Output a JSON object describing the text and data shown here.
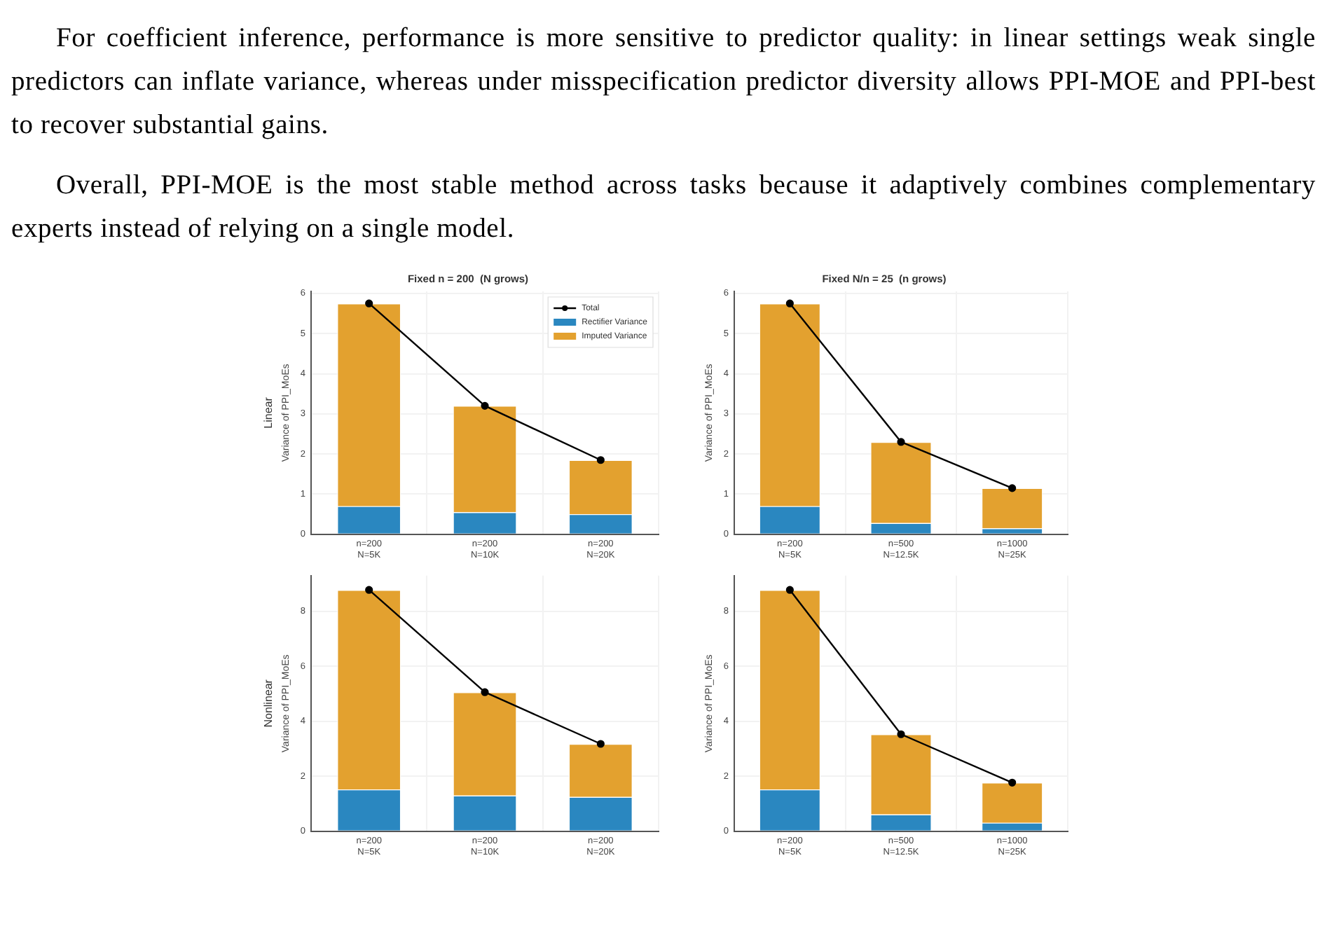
{
  "chart_data": [
    {
      "type": "other",
      "annotations": [
        "For coefficient inference, performance is more sensitive to predictor quality: in linear settings weak single predictors can inflate variance, whereas under misspecification predictor diversity allows PPI-MOE and PPI-best to recover substantial gains.",
        "Overall, PPI-MOE is the most stable method across tasks because it adaptively combines complementary experts instead of relying on a single model."
      ]
    },
    {
      "type": "bar",
      "stacked": true,
      "title": "Fixed n = 200  (N grows)",
      "ylabel": "Variance of PPI_MoEs",
      "annotations": [
        "Linear"
      ],
      "categories": [
        "n=200\nN=5K",
        "n=200\nN=10K",
        "n=200\nN=20K"
      ],
      "ylim": [
        0,
        6.05
      ],
      "yticks": [
        0,
        1,
        2,
        3,
        4,
        5,
        6
      ],
      "grid": true,
      "legend": "top right",
      "series": [
        {
          "name": "Total",
          "type": "line",
          "color": "#000000",
          "marker": "circle",
          "values": [
            5.75,
            3.2,
            1.85
          ]
        },
        {
          "name": "Rectifier Variance",
          "color": "#2a87c0",
          "values": [
            0.7,
            0.55,
            0.5
          ]
        },
        {
          "name": "Imputed Variance",
          "color": "#e3a12f",
          "values": [
            5.05,
            2.65,
            1.35
          ]
        }
      ]
    },
    {
      "type": "bar",
      "stacked": true,
      "title": "Fixed N/n = 25  (n grows)",
      "ylabel": "Variance of PPI_MoEs",
      "categories": [
        "n=200\nN=5K",
        "n=500\nN=12.5K",
        "n=1000\nN=25K"
      ],
      "ylim": [
        0,
        6.05
      ],
      "yticks": [
        0,
        1,
        2,
        3,
        4,
        5,
        6
      ],
      "grid": true,
      "series": [
        {
          "type": "line",
          "color": "#000000",
          "marker": "circle",
          "values": [
            5.75,
            2.3,
            1.15
          ]
        },
        {
          "color": "#2a87c0",
          "values": [
            0.7,
            0.28,
            0.15
          ]
        },
        {
          "color": "#e3a12f",
          "values": [
            5.05,
            2.02,
            1.0
          ]
        }
      ]
    },
    {
      "type": "bar",
      "stacked": true,
      "ylabel": "Variance of PPI_MoEs",
      "annotations": [
        "Nonlinear"
      ],
      "categories": [
        "n=200\nN=5K",
        "n=200\nN=10K",
        "n=200\nN=20K"
      ],
      "ylim": [
        0,
        9.3
      ],
      "yticks": [
        0,
        2,
        4,
        6,
        8
      ],
      "grid": true,
      "series": [
        {
          "type": "line",
          "color": "#000000",
          "marker": "circle",
          "values": [
            8.78,
            5.06,
            3.18
          ]
        },
        {
          "color": "#2a87c0",
          "values": [
            1.52,
            1.3,
            1.25
          ]
        },
        {
          "color": "#e3a12f",
          "values": [
            7.26,
            3.76,
            1.93
          ]
        }
      ]
    },
    {
      "type": "bar",
      "stacked": true,
      "ylabel": "Variance of PPI_MoEs",
      "categories": [
        "n=200\nN=5K",
        "n=500\nN=12.5K",
        "n=1000\nN=25K"
      ],
      "ylim": [
        0,
        9.3
      ],
      "yticks": [
        0,
        2,
        4,
        6,
        8
      ],
      "grid": true,
      "series": [
        {
          "type": "line",
          "color": "#000000",
          "marker": "circle",
          "values": [
            8.78,
            3.53,
            1.77
          ]
        },
        {
          "color": "#2a87c0",
          "values": [
            1.52,
            0.61,
            0.31
          ]
        },
        {
          "color": "#e3a12f",
          "values": [
            7.26,
            2.92,
            1.46
          ]
        }
      ]
    }
  ]
}
